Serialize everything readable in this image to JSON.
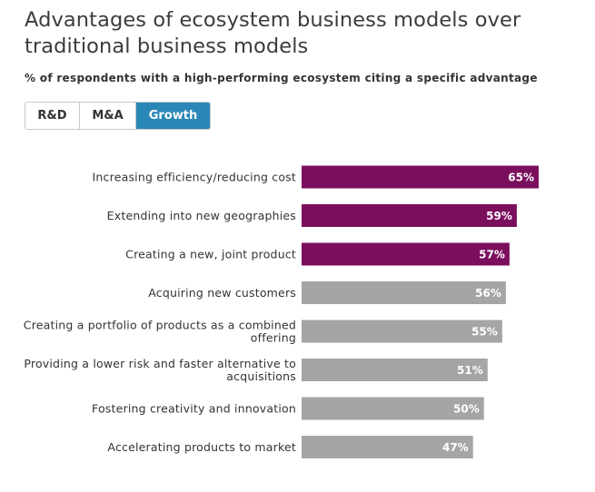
{
  "title": "Advantages of ecosystem business models over traditional business models",
  "subtitle": "% of respondents with a high-performing ecosystem citing a specific advantage",
  "tabs": [
    {
      "label": "R&D",
      "active": false
    },
    {
      "label": "M&A",
      "active": false
    },
    {
      "label": "Growth",
      "active": true
    }
  ],
  "colors": {
    "highlight": "#7b0f5e",
    "muted": "#a5a5a5",
    "tab_active": "#2b87b7"
  },
  "chart_data": {
    "type": "bar",
    "orientation": "horizontal",
    "categories": [
      [
        "Increasing efficiency/reducing cost"
      ],
      [
        "Extending into new geographies"
      ],
      [
        "Creating a new, joint product"
      ],
      [
        "Acquiring new customers"
      ],
      [
        "Creating a portfolio of products as a combined",
        "offering"
      ],
      [
        "Providing a lower risk and faster alternative to",
        "acquisitions"
      ],
      [
        "Fostering creativity and innovation"
      ],
      [
        "Accelerating products to market"
      ]
    ],
    "values": [
      65,
      59,
      57,
      56,
      55,
      51,
      50,
      47
    ],
    "value_labels": [
      "65%",
      "59%",
      "57%",
      "56%",
      "55%",
      "51%",
      "50%",
      "47%"
    ],
    "highlighted": [
      true,
      true,
      true,
      false,
      false,
      false,
      false,
      false
    ],
    "xlim": [
      0,
      65
    ]
  }
}
